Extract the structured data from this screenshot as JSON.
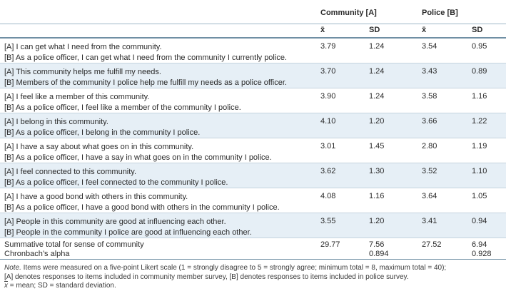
{
  "header": {
    "community": "Community [A]",
    "police": "Police [B]",
    "mean_symbol": "x̄",
    "sd": "SD"
  },
  "rows": [
    {
      "a": "[A] I can get what I need from the community.",
      "b": "[B] As a police officer, I can get what I need from the community I currently police.",
      "cm": "3.79",
      "csd": "1.24",
      "pm": "3.54",
      "psd": "0.95"
    },
    {
      "a": "[A] This community helps me fulfill my needs.",
      "b": "[B] Members of the community I police help me fulfill my needs as a police officer.",
      "cm": "3.70",
      "csd": "1.24",
      "pm": "3.43",
      "psd": "0.89"
    },
    {
      "a": "[A] I feel like a member of this community.",
      "b": "[B] As a police officer, I feel like a member of the community I police.",
      "cm": "3.90",
      "csd": "1.24",
      "pm": "3.58",
      "psd": "1.16"
    },
    {
      "a": "[A] I belong in this community.",
      "b": "[B] As a police officer, I belong in the community I police.",
      "cm": "4.10",
      "csd": "1.20",
      "pm": "3.66",
      "psd": "1.22"
    },
    {
      "a": "[A] I have a say about what goes on in this community.",
      "b": "[B] As a police officer, I have a say in what goes on in the community I police.",
      "cm": "3.01",
      "csd": "1.45",
      "pm": "2.80",
      "psd": "1.19"
    },
    {
      "a": "[A] I feel connected to this community.",
      "b": "[B] As a police officer, I feel connected to the community I police.",
      "cm": "3.62",
      "csd": "1.30",
      "pm": "3.52",
      "psd": "1.10"
    },
    {
      "a": "[A] I have a good bond with others in this community.",
      "b": "[B] As a police officer, I have a good bond with others in the community I police.",
      "cm": "4.08",
      "csd": "1.16",
      "pm": "3.64",
      "psd": "1.05"
    },
    {
      "a": "[A] People in this community are good at influencing each other.",
      "b": "[B] People in the community I police are good at influencing each other.",
      "cm": "3.55",
      "csd": "1.20",
      "pm": "3.41",
      "psd": "0.94"
    }
  ],
  "summary": {
    "label1": "Summative total for sense of community",
    "label2": "Chronbach’s alpha",
    "cm": "29.77",
    "csd": "7.56",
    "c_alpha": "0.894",
    "pm": "27.52",
    "psd": "6.94",
    "p_alpha": "0.928"
  },
  "note": {
    "prefix": "Note.",
    "line1": " Items were measured on a five-point Likert scale (1 = strongly disagree to 5 = strongly agree; minimum total = 8, maximum total = 40);",
    "line2": "[A] denotes responses to items included in community member survey, [B] denotes responses to items included in police survey.",
    "line3_symbol": "x",
    "line3": " = mean; SD = standard deviation."
  }
}
